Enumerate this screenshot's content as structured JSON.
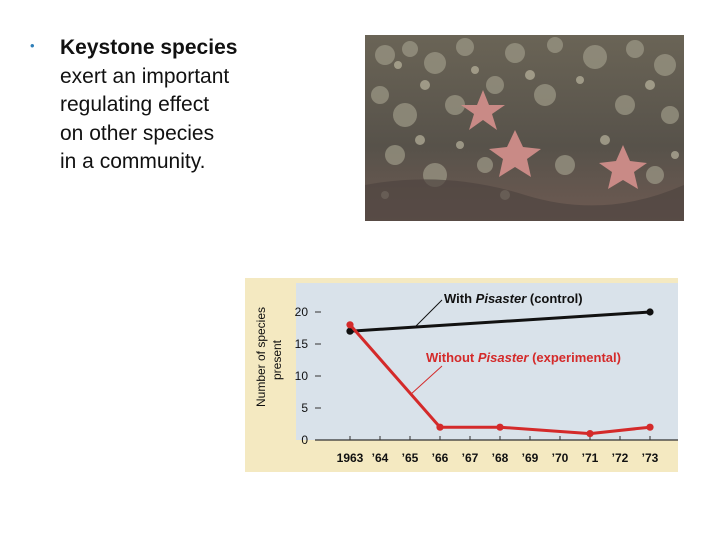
{
  "slide": {
    "bullet": {
      "bold_text": "Keystone species",
      "lines": [
        "exert an important",
        "regulating effect",
        "on other species",
        "in a community."
      ]
    },
    "photo": {}
  },
  "chart_data": {
    "type": "line",
    "ylabel_line1": "Number of species",
    "ylabel_line2": "present",
    "ylim": [
      0,
      20
    ],
    "yticks": [
      "0",
      "5",
      "10",
      "15",
      "20"
    ],
    "categories": [
      "1963",
      "’64",
      "’65",
      "’66",
      "’67",
      "’68",
      "’69",
      "’70",
      "’71",
      "’72",
      "’73"
    ],
    "series": [
      {
        "name_prefix": "With ",
        "name_italic": "Pisaster",
        "name_suffix": " (control)",
        "color": "#111111",
        "x": [
          0,
          10
        ],
        "values": [
          17,
          20
        ]
      },
      {
        "name_prefix": "Without ",
        "name_italic": "Pisaster",
        "name_suffix": " (experimental)",
        "color": "#d42a2a",
        "x": [
          0,
          3,
          5,
          8,
          10
        ],
        "values": [
          18,
          2,
          2,
          1,
          2
        ]
      }
    ],
    "grid": false
  }
}
